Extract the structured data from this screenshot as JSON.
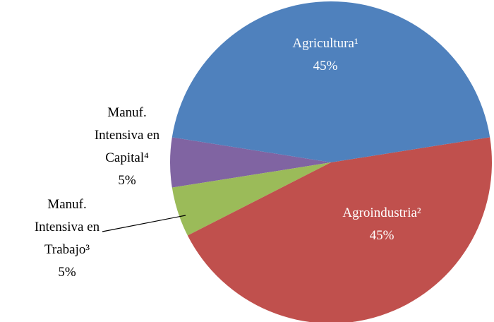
{
  "chart_data": {
    "type": "pie",
    "categories": [
      "Agricultura¹",
      "Agroindustria²",
      "Manuf. Intensiva en Trabajo³",
      "Manuf. Intensiva en Capital⁴"
    ],
    "values": [
      45,
      45,
      5,
      5
    ],
    "value_labels": [
      "45%",
      "45%",
      "5%",
      "5%"
    ],
    "colors": [
      "#4f81bd",
      "#c0504d",
      "#9bbb59",
      "#8064a2"
    ]
  }
}
